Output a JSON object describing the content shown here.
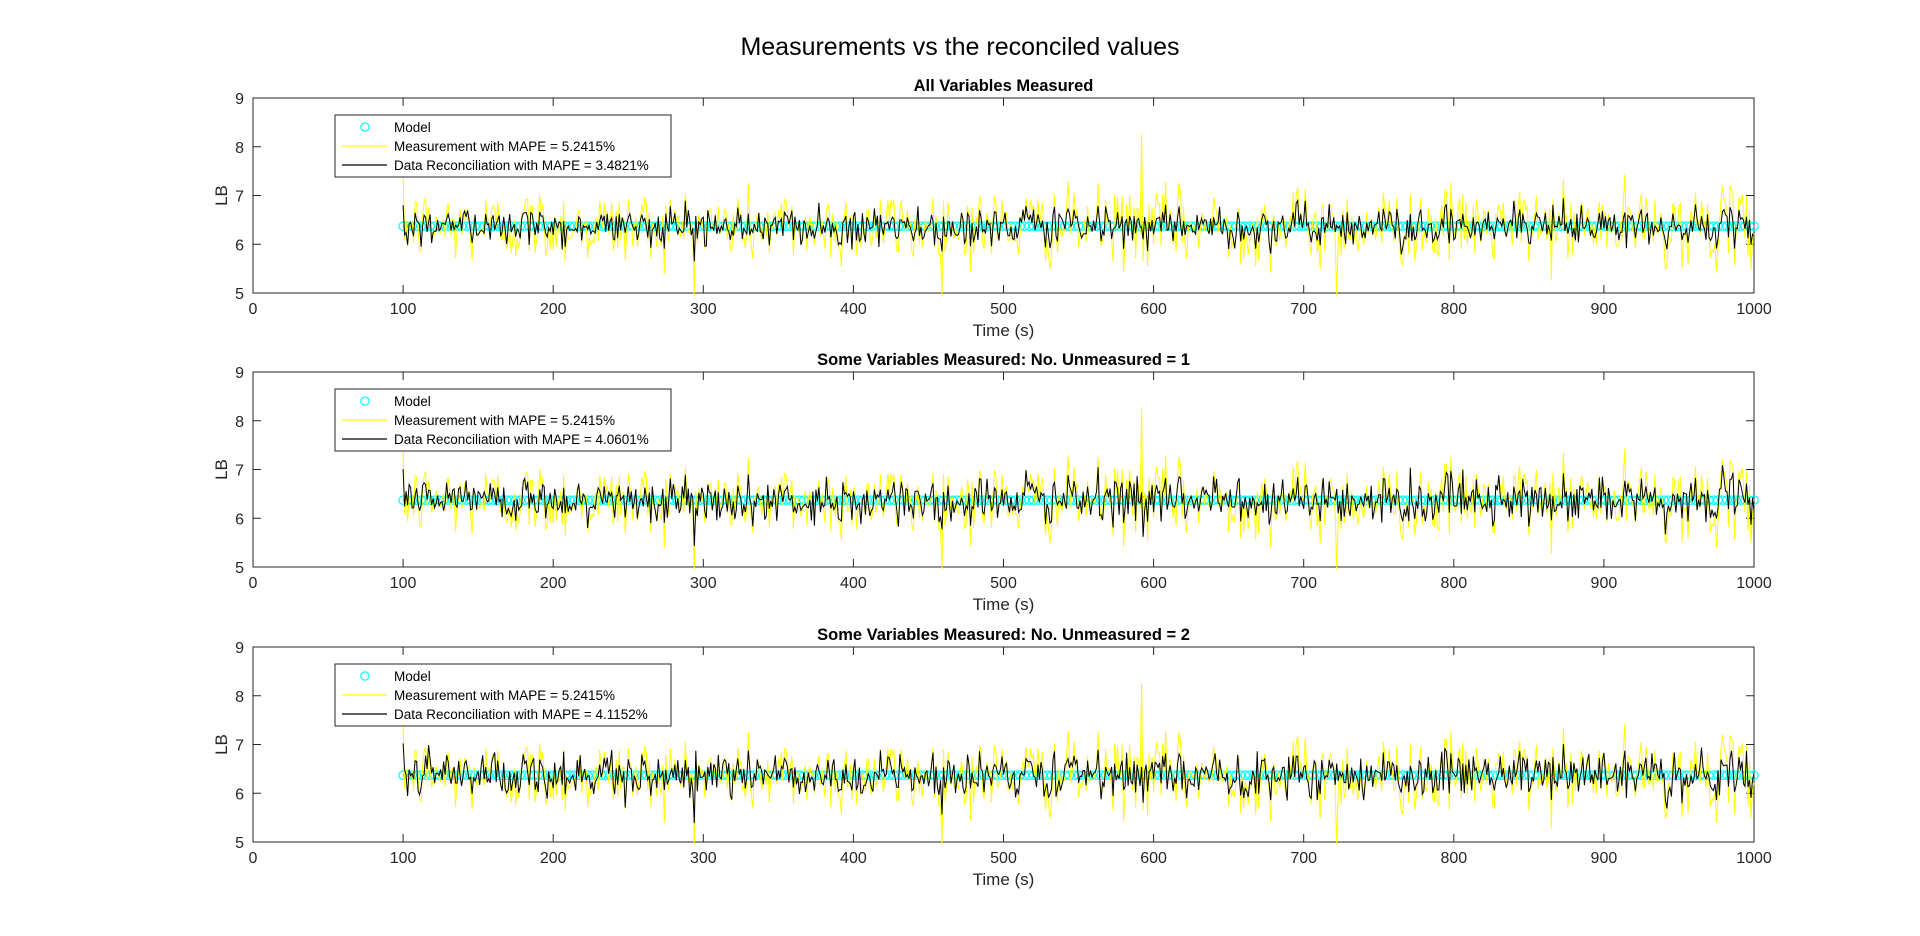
{
  "figure_title": "Measurements vs the reconciled values",
  "colors": {
    "model": "#00FFFF",
    "measurement": "#FFFF00",
    "reconciliation": "#000000",
    "axes": "#262626"
  },
  "chart_data": [
    {
      "type": "line",
      "title": "All Variables Measured",
      "xlabel": "Time (s)",
      "ylabel": "LB",
      "xlim": [
        0,
        1000
      ],
      "ylim": [
        5,
        9
      ],
      "xticks": [
        "0",
        "100",
        "200",
        "300",
        "400",
        "500",
        "600",
        "700",
        "800",
        "900",
        "1000"
      ],
      "yticks": [
        "5",
        "6",
        "7",
        "8",
        "9"
      ],
      "legend_position": "top-left",
      "x_range": [
        100,
        1000
      ],
      "series": [
        {
          "name": "Model",
          "style": "markers",
          "marker": "circle",
          "value": 6.37
        },
        {
          "name": "Measurement with MAPE = 5.2415%",
          "style": "line",
          "mean": 6.37,
          "spread": 0.38,
          "min": 4.95,
          "max": 8.25
        },
        {
          "name": "Data Reconciliation with MAPE = 3.4821%",
          "style": "line",
          "mean": 6.37,
          "spread": 0.28,
          "min": 5.5,
          "max": 7.5
        }
      ]
    },
    {
      "type": "line",
      "title": "Some Variables Measured: No. Unmeasured = 1",
      "xlabel": "Time (s)",
      "ylabel": "LB",
      "xlim": [
        0,
        1000
      ],
      "ylim": [
        5,
        9
      ],
      "xticks": [
        "0",
        "100",
        "200",
        "300",
        "400",
        "500",
        "600",
        "700",
        "800",
        "900",
        "1000"
      ],
      "yticks": [
        "5",
        "6",
        "7",
        "8",
        "9"
      ],
      "legend_position": "top-left",
      "x_range": [
        100,
        1000
      ],
      "series": [
        {
          "name": "Model",
          "style": "markers",
          "marker": "circle",
          "value": 6.37
        },
        {
          "name": "Measurement with MAPE = 5.2415%",
          "style": "line",
          "mean": 6.37,
          "spread": 0.38,
          "min": 4.95,
          "max": 8.25
        },
        {
          "name": "Data Reconciliation with MAPE = 4.0601%",
          "style": "line",
          "mean": 6.37,
          "spread": 0.33,
          "min": 5.05,
          "max": 7.8
        }
      ]
    },
    {
      "type": "line",
      "title": "Some Variables Measured: No. Unmeasured = 2",
      "xlabel": "Time (s)",
      "ylabel": "LB",
      "xlim": [
        0,
        1000
      ],
      "ylim": [
        5,
        9
      ],
      "xticks": [
        "0",
        "100",
        "200",
        "300",
        "400",
        "500",
        "600",
        "700",
        "800",
        "900",
        "1000"
      ],
      "yticks": [
        "5",
        "6",
        "7",
        "8",
        "9"
      ],
      "legend_position": "top-left",
      "x_range": [
        100,
        1000
      ],
      "series": [
        {
          "name": "Model",
          "style": "markers",
          "marker": "circle",
          "value": 6.37
        },
        {
          "name": "Measurement with MAPE = 5.2415%",
          "style": "line",
          "mean": 6.37,
          "spread": 0.38,
          "min": 4.95,
          "max": 8.25
        },
        {
          "name": "Data Reconciliation with MAPE = 4.1152%",
          "style": "line",
          "mean": 6.37,
          "spread": 0.34,
          "min": 5.05,
          "max": 7.85
        }
      ]
    }
  ]
}
